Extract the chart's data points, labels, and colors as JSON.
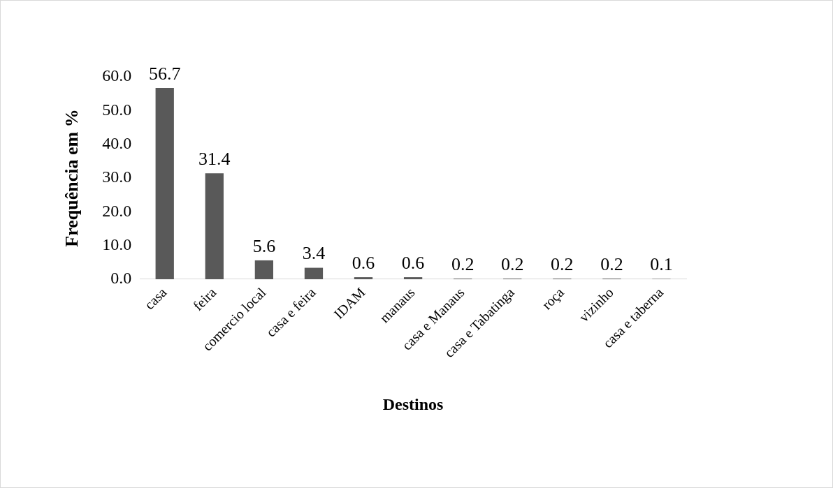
{
  "chart_data": {
    "type": "bar",
    "xlabel": "Destinos",
    "ylabel": "Frequência em %",
    "categories": [
      "casa",
      "feira",
      "comercio local",
      "casa e feira",
      "IDAM",
      "manaus",
      "casa e Manaus",
      "casa e Tabatinga",
      "roça",
      "vizinho",
      "casa e taberna"
    ],
    "values": [
      56.7,
      31.4,
      5.6,
      3.4,
      0.6,
      0.6,
      0.2,
      0.2,
      0.2,
      0.2,
      0.1
    ],
    "color": "#595959",
    "data_labels": true,
    "grid": false,
    "legend": false,
    "ylim": [
      0,
      60
    ],
    "yticks": [
      {
        "value": 0,
        "label": "0.0"
      },
      {
        "value": 10,
        "label": "10.0"
      },
      {
        "value": 20,
        "label": "20.0"
      },
      {
        "value": 30,
        "label": "30.0"
      },
      {
        "value": 40,
        "label": "40.0"
      },
      {
        "value": 50,
        "label": "50.0"
      },
      {
        "value": 60,
        "label": "60.0"
      }
    ]
  }
}
